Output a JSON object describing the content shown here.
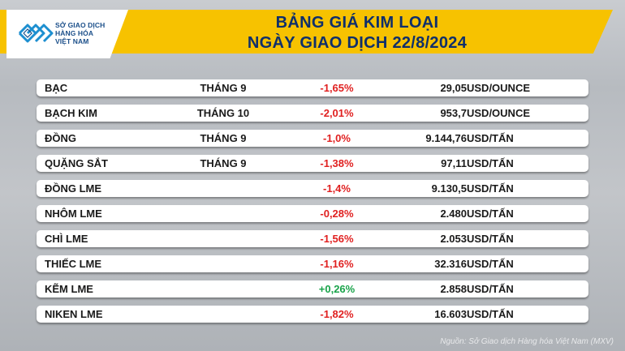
{
  "logo": {
    "line1": "SỞ GIAO DỊCH",
    "line2": "HÀNG HÓA",
    "line3": "VIỆT NAM",
    "icon": "mxv-logo-icon"
  },
  "title": {
    "line1": "BẢNG GIÁ KIM LOẠI",
    "line2": "NGÀY GIAO DỊCH 22/8/2024"
  },
  "colors": {
    "banner": "#f7c200",
    "title": "#0f2f6b",
    "negative": "#e02020",
    "positive": "#19a34a"
  },
  "rows": [
    {
      "name": "BẠC",
      "month": "THÁNG 9",
      "change": "-1,65%",
      "price": "29,05",
      "unit": "USD/OUNCE",
      "trend": "neg"
    },
    {
      "name": "BẠCH KIM",
      "month": "THÁNG 10",
      "change": "-2,01%",
      "price": "953,7",
      "unit": "USD/OUNCE",
      "trend": "neg"
    },
    {
      "name": "ĐỒNG",
      "month": "THÁNG 9",
      "change": "-1,0%",
      "price": "9.144,76",
      "unit": "USD/TẤN",
      "trend": "neg"
    },
    {
      "name": "QUẶNG SẮT",
      "month": "THÁNG 9",
      "change": "-1,38%",
      "price": "97,11",
      "unit": "USD/TẤN",
      "trend": "neg"
    },
    {
      "name": "ĐỒNG LME",
      "month": "",
      "change": "-1,4%",
      "price": "9.130,5",
      "unit": "USD/TẤN",
      "trend": "neg"
    },
    {
      "name": "NHÔM LME",
      "month": "",
      "change": "-0,28%",
      "price": "2.480",
      "unit": "USD/TẤN",
      "trend": "neg"
    },
    {
      "name": "CHÌ LME",
      "month": "",
      "change": "-1,56%",
      "price": "2.053",
      "unit": "USD/TẤN",
      "trend": "neg"
    },
    {
      "name": "THIẾC LME",
      "month": "",
      "change": "-1,16%",
      "price": "32.316",
      "unit": "USD/TẤN",
      "trend": "neg"
    },
    {
      "name": "KẼM LME",
      "month": "",
      "change": "+0,26%",
      "price": "2.858",
      "unit": "USD/TẤN",
      "trend": "pos"
    },
    {
      "name": "NIKEN LME",
      "month": "",
      "change": "-1,82%",
      "price": "16.603",
      "unit": "USD/TẤN",
      "trend": "neg"
    }
  ],
  "source": "Nguồn: Sở Giao dịch Hàng hóa Việt Nam (MXV)"
}
